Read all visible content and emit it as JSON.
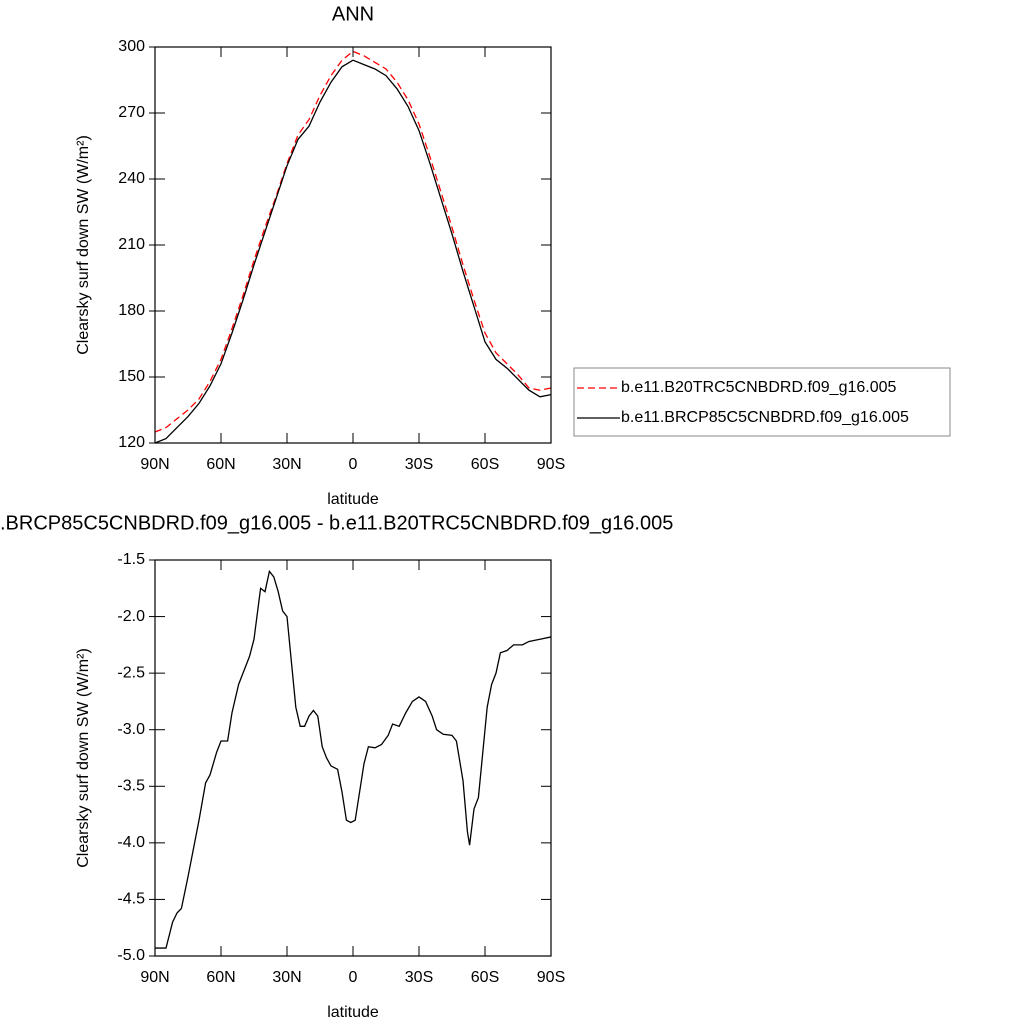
{
  "chart_data": [
    {
      "type": "line",
      "title": "ANN",
      "xlabel": "latitude",
      "ylabel": "Clearsky surf down SW (W/m²)",
      "x": [
        90,
        85,
        80,
        75,
        70,
        65,
        60,
        55,
        50,
        45,
        40,
        35,
        30,
        25,
        20,
        15,
        10,
        5,
        0,
        -5,
        -10,
        -15,
        -20,
        -25,
        -30,
        -35,
        -40,
        -45,
        -50,
        -55,
        -60,
        -65,
        -70,
        -75,
        -80,
        -85,
        -90
      ],
      "series": [
        {
          "name": "b.e11.B20TRC5CNBDRD.f09_g16.005",
          "color": "#ff0000",
          "linestyle": "dashed",
          "values": [
            125,
            127,
            131,
            135,
            140,
            148,
            158,
            172,
            187,
            203,
            218,
            232,
            247,
            260,
            267,
            278,
            287,
            294,
            298,
            296,
            293,
            290,
            284,
            276,
            265,
            250,
            234,
            218,
            201,
            185,
            170,
            161,
            156,
            151,
            145,
            144,
            145
          ]
        },
        {
          "name": "b.e11.BRCP85C5CNBDRD.f09_g16.005",
          "color": "#000000",
          "linestyle": "solid",
          "values": [
            120,
            122,
            127,
            132,
            138,
            146,
            156,
            170,
            185,
            201,
            216,
            231,
            246,
            258,
            264,
            275,
            284,
            291,
            294,
            292,
            290,
            287,
            281,
            273,
            262,
            247,
            231,
            215,
            198,
            182,
            166,
            158,
            154,
            149,
            144,
            141,
            142
          ]
        }
      ],
      "xlim": [
        90,
        -90
      ],
      "xticks": [
        {
          "value": 90,
          "label": "90N"
        },
        {
          "value": 60,
          "label": "60N"
        },
        {
          "value": 30,
          "label": "30N"
        },
        0,
        {
          "value": -30,
          "label": "30S"
        },
        {
          "value": -60,
          "label": "60S"
        },
        {
          "value": -90,
          "label": "90S"
        }
      ],
      "ylim": [
        120,
        300
      ],
      "yticks": [
        120,
        150,
        180,
        210,
        240,
        270,
        300
      ]
    },
    {
      "type": "line",
      "title": ".BRCP85C5CNBDRD.f09_g16.005 - b.e11.B20TRC5CNBDRD.f09_g16.005",
      "xlabel": "latitude",
      "ylabel": "Clearsky surf down SW (W/m²)",
      "x": [
        90,
        85,
        82,
        80,
        78,
        75,
        73,
        70,
        67,
        65,
        62,
        60,
        57,
        55,
        52,
        50,
        47,
        45,
        43,
        42,
        40,
        38,
        36,
        34,
        32,
        30,
        28,
        26,
        24,
        22,
        20,
        18,
        16,
        14,
        12,
        10,
        7,
        5,
        3,
        1,
        -1,
        -3,
        -5,
        -7,
        -10,
        -13,
        -16,
        -18,
        -21,
        -24,
        -27,
        -30,
        -33,
        -36,
        -38,
        -41,
        -45,
        -47,
        -50,
        -52,
        -53,
        -55,
        -57,
        -59,
        -61,
        -63,
        -65,
        -67,
        -70,
        -73,
        -77,
        -80,
        -85,
        -90
      ],
      "series": [
        {
          "color": "#000000",
          "linestyle": "solid",
          "values": [
            -4.93,
            -4.93,
            -4.7,
            -4.62,
            -4.58,
            -4.3,
            -4.1,
            -3.8,
            -3.47,
            -3.4,
            -3.2,
            -3.1,
            -3.1,
            -2.85,
            -2.6,
            -2.5,
            -2.35,
            -2.2,
            -1.9,
            -1.75,
            -1.78,
            -1.6,
            -1.65,
            -1.78,
            -1.95,
            -2.0,
            -2.4,
            -2.8,
            -2.97,
            -2.97,
            -2.88,
            -2.83,
            -2.88,
            -3.15,
            -3.25,
            -3.32,
            -3.35,
            -3.55,
            -3.8,
            -3.82,
            -3.8,
            -3.55,
            -3.3,
            -3.15,
            -3.16,
            -3.13,
            -3.05,
            -2.95,
            -2.97,
            -2.85,
            -2.75,
            -2.71,
            -2.75,
            -2.88,
            -3.0,
            -3.04,
            -3.05,
            -3.1,
            -3.45,
            -3.9,
            -4.02,
            -3.7,
            -3.6,
            -3.2,
            -2.8,
            -2.6,
            -2.5,
            -2.32,
            -2.3,
            -2.25,
            -2.25,
            -2.22,
            -2.2,
            -2.18
          ]
        }
      ],
      "xlim": [
        90,
        -90
      ],
      "xticks": [
        {
          "value": 90,
          "label": "90N"
        },
        {
          "value": 60,
          "label": "60N"
        },
        {
          "value": 30,
          "label": "30N"
        },
        0,
        {
          "value": -30,
          "label": "30S"
        },
        {
          "value": -60,
          "label": "60S"
        },
        {
          "value": -90,
          "label": "90S"
        }
      ],
      "ylim": [
        -5,
        -1.5
      ],
      "yticks": [
        {
          "value": -5,
          "label": "-5.0"
        },
        -4.5,
        {
          "value": -4,
          "label": "-4.0"
        },
        -3.5,
        {
          "value": -3,
          "label": "-3.0"
        },
        -2.5,
        {
          "value": -2,
          "label": "-2.0"
        },
        -1.5
      ]
    }
  ]
}
